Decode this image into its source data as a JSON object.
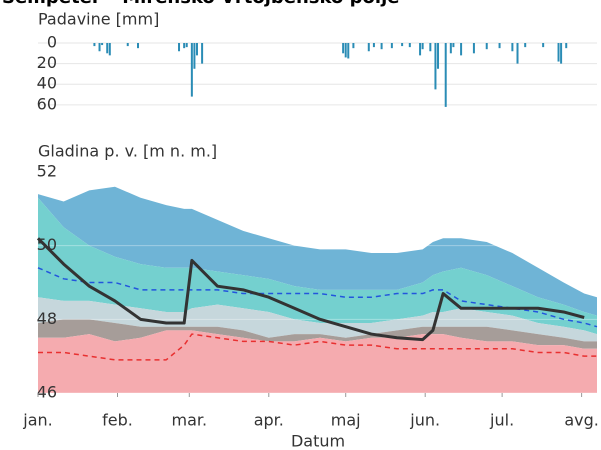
{
  "chart_data": [
    {
      "type": "bar",
      "title": "Šempeter – Mirensko-Vrtojbensko polje",
      "ylabel": "Padavine [mm]",
      "color": "#2a8cb5",
      "x": [
        22,
        24,
        25,
        27,
        28,
        35,
        39,
        55,
        57,
        58,
        60,
        61,
        62,
        64,
        119,
        120,
        121,
        123,
        129,
        131,
        134,
        138,
        142,
        145,
        149,
        150,
        153,
        155,
        156,
        159,
        161,
        162,
        165,
        170,
        175,
        180,
        185,
        187,
        190,
        197,
        203,
        204,
        206
      ],
      "values": [
        3,
        8,
        2,
        10,
        12,
        3,
        5,
        8,
        5,
        4,
        52,
        25,
        12,
        20,
        10,
        14,
        15,
        5,
        8,
        4,
        6,
        5,
        3,
        4,
        12,
        6,
        8,
        45,
        25,
        62,
        10,
        4,
        12,
        10,
        6,
        5,
        8,
        20,
        4,
        4,
        18,
        20,
        5
      ],
      "xlim": [
        0,
        218
      ],
      "ylim": [
        0,
        65
      ],
      "y_inverted": true,
      "yticks": [
        0,
        20,
        40,
        60
      ],
      "grid": true
    },
    {
      "type": "area",
      "ylabel": "Gladina p. v. [m n. m.]",
      "xlabel": "Datum",
      "x": [
        0,
        10,
        20,
        30,
        40,
        50,
        57,
        60,
        70,
        80,
        90,
        100,
        110,
        120,
        130,
        140,
        150,
        154,
        158,
        165,
        175,
        185,
        195,
        205,
        213,
        218
      ],
      "xlim": [
        0,
        218
      ],
      "xticks": [
        {
          "value": 0,
          "label": "jan."
        },
        {
          "value": 31,
          "label": "feb."
        },
        {
          "value": 59,
          "label": "mar."
        },
        {
          "value": 90,
          "label": "apr."
        },
        {
          "value": 120,
          "label": "maj"
        },
        {
          "value": 151,
          "label": "jun."
        },
        {
          "value": 181,
          "label": "jul."
        },
        {
          "value": 212,
          "label": "avg."
        }
      ],
      "ylim": [
        46,
        52
      ],
      "yticks": [
        46,
        48,
        50,
        52
      ],
      "grid": true,
      "series": [
        {
          "style": "band",
          "color": "#6fb4d6",
          "values": [
            51.4,
            51.2,
            51.5,
            51.6,
            51.3,
            51.1,
            51.0,
            51.0,
            50.7,
            50.4,
            50.2,
            50.0,
            49.9,
            49.9,
            49.8,
            49.8,
            49.9,
            50.1,
            50.2,
            50.2,
            50.1,
            49.8,
            49.4,
            49.0,
            48.7,
            48.6
          ]
        },
        {
          "style": "band",
          "color": "#74d0cf",
          "values": [
            51.3,
            50.5,
            50.0,
            49.7,
            49.5,
            49.4,
            49.4,
            49.4,
            49.3,
            49.2,
            49.1,
            48.9,
            48.8,
            48.8,
            48.8,
            48.8,
            49.0,
            49.2,
            49.3,
            49.4,
            49.2,
            48.9,
            48.6,
            48.4,
            48.2,
            48.1
          ]
        },
        {
          "style": "band",
          "color": "#c6d7dc",
          "values": [
            48.6,
            48.5,
            48.5,
            48.4,
            48.3,
            48.2,
            48.2,
            48.3,
            48.4,
            48.3,
            48.2,
            48.0,
            47.9,
            47.9,
            47.9,
            48.0,
            48.1,
            48.2,
            48.2,
            48.3,
            48.2,
            48.1,
            47.9,
            47.8,
            47.7,
            47.6
          ]
        },
        {
          "style": "band",
          "color": "#a69d99",
          "values": [
            47.9,
            48.0,
            48.0,
            47.9,
            47.8,
            47.8,
            47.8,
            47.8,
            47.8,
            47.7,
            47.5,
            47.6,
            47.6,
            47.5,
            47.6,
            47.7,
            47.8,
            47.8,
            47.8,
            47.8,
            47.8,
            47.7,
            47.6,
            47.5,
            47.4,
            47.4
          ]
        },
        {
          "style": "band",
          "color": "#f5abaf",
          "values": [
            47.5,
            47.5,
            47.6,
            47.4,
            47.5,
            47.7,
            47.7,
            47.7,
            47.6,
            47.5,
            47.4,
            47.4,
            47.5,
            47.4,
            47.5,
            47.5,
            47.6,
            47.6,
            47.6,
            47.5,
            47.4,
            47.4,
            47.3,
            47.3,
            47.2,
            47.2
          ]
        },
        {
          "style": "dashed",
          "color": "#2255dd",
          "values": [
            49.4,
            49.1,
            49.0,
            49.0,
            48.8,
            48.8,
            48.8,
            48.8,
            48.8,
            48.7,
            48.7,
            48.7,
            48.7,
            48.6,
            48.6,
            48.7,
            48.7,
            48.8,
            48.8,
            48.5,
            48.4,
            48.3,
            48.2,
            48.0,
            47.9,
            47.8
          ]
        },
        {
          "style": "dashed",
          "color": "#e83030",
          "values": [
            47.1,
            47.1,
            47.0,
            46.9,
            46.9,
            46.9,
            47.3,
            47.6,
            47.5,
            47.4,
            47.4,
            47.3,
            47.4,
            47.3,
            47.3,
            47.2,
            47.2,
            47.2,
            47.2,
            47.2,
            47.2,
            47.2,
            47.1,
            47.1,
            47.0,
            47.0
          ]
        },
        {
          "style": "solid",
          "color": "#333333",
          "values": [
            50.2,
            49.5,
            48.9,
            48.5,
            48.0,
            47.9,
            47.9,
            49.6,
            48.9,
            48.8,
            48.6,
            48.3,
            48.0,
            47.8,
            47.6,
            47.5,
            47.45,
            47.7,
            48.7,
            48.3,
            48.3,
            48.3,
            48.3,
            48.2,
            48.05,
            null
          ]
        }
      ]
    }
  ]
}
